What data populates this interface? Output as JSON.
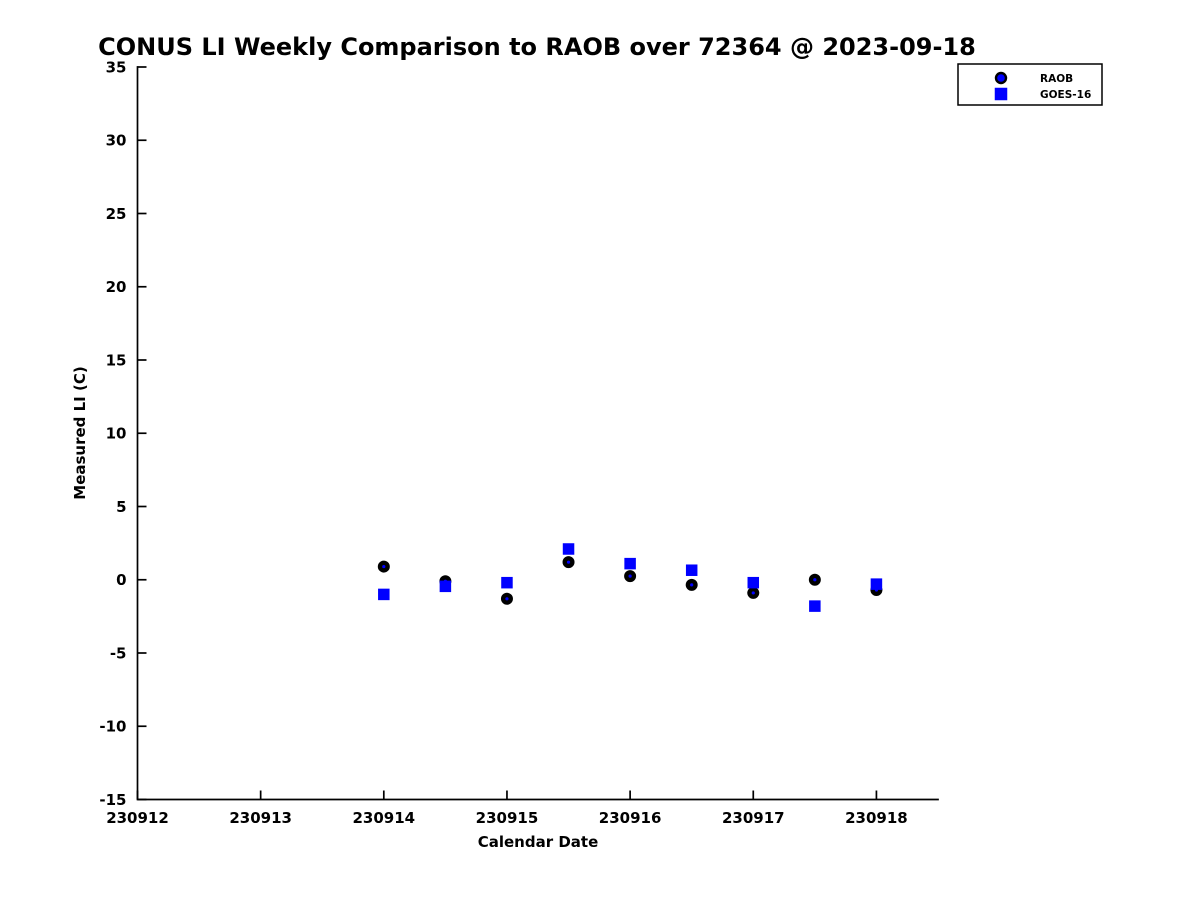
{
  "chart_data": {
    "type": "scatter",
    "title": "CONUS LI Weekly Comparison to RAOB over 72364 @ 2023-09-18",
    "xlabel": "Calendar Date",
    "ylabel": "Measured LI (C)",
    "xlim": [
      230912,
      230918.5
    ],
    "ylim": [
      -15,
      35
    ],
    "x_ticks": [
      230912,
      230913,
      230914,
      230915,
      230916,
      230917,
      230918
    ],
    "y_ticks": [
      -15,
      -10,
      -5,
      0,
      5,
      10,
      15,
      20,
      25,
      30,
      35
    ],
    "grid": false,
    "legend_position": "top-right",
    "x": [
      230914,
      230914.5,
      230915,
      230915.5,
      230916,
      230916.5,
      230917,
      230917.5,
      230918
    ],
    "series": [
      {
        "name": "RAOB",
        "marker": "circle",
        "face_color": "#0000FF",
        "edge_color": "#000000",
        "values": [
          0.9,
          -0.1,
          -1.3,
          1.2,
          0.25,
          -0.35,
          -0.9,
          0.0,
          -0.7
        ]
      },
      {
        "name": "GOES-16",
        "marker": "square",
        "face_color": "#0000FF",
        "edge_color": "#0000FF",
        "values": [
          -1.0,
          -0.45,
          -0.2,
          2.1,
          1.1,
          0.65,
          -0.2,
          -1.8,
          -0.3
        ]
      }
    ]
  },
  "colors": {
    "accent_blue": "#0000FF",
    "axis_black": "#000000",
    "background": "#FFFFFF"
  }
}
